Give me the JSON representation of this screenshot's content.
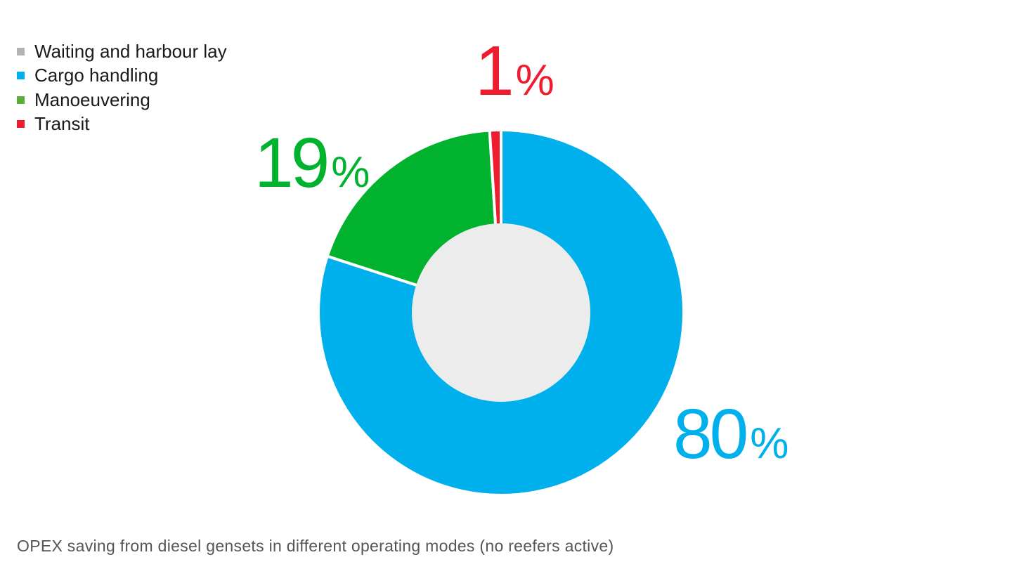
{
  "chart_data": {
    "type": "pie",
    "donut": true,
    "categories": [
      "Waiting and harbour lay",
      "Cargo handling",
      "Manoeuvering",
      "Transit"
    ],
    "values": [
      0,
      80,
      19,
      1
    ],
    "colors": [
      "#bdbdbd",
      "#00b0ec",
      "#00b22d",
      "#ee1c2e"
    ],
    "center_color": "#ececec",
    "data_labels": [
      {
        "category": "Transit",
        "number": "1",
        "unit": "%",
        "color": "#ee1c2e"
      },
      {
        "category": "Manoeuvering",
        "number": "19",
        "unit": "%",
        "color": "#00b22d"
      },
      {
        "category": "Cargo handling",
        "number": "80",
        "unit": "%",
        "color": "#00b0ec"
      }
    ],
    "legend": {
      "position": "top-left",
      "items": [
        {
          "label": "Waiting and harbour lay",
          "color": "#b3b3b3"
        },
        {
          "label": "Cargo handling",
          "color": "#00b0ec"
        },
        {
          "label": "Manoeuvering",
          "color": "#5aad36"
        },
        {
          "label": "Transit",
          "color": "#ee1c2e"
        }
      ]
    },
    "caption": "OPEX saving from diesel gensets in different operating modes (no reefers active)"
  }
}
